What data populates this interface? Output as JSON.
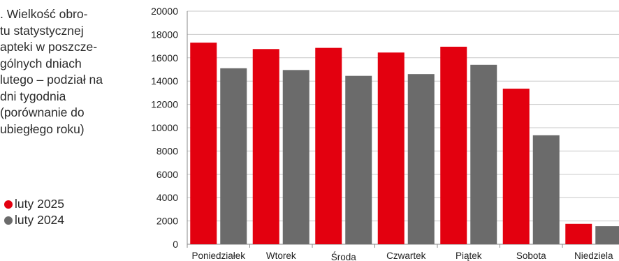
{
  "caption": {
    "lines": [
      ". Wielkość obro-",
      "tu statystycznej",
      "apteki w poszcze-",
      "gólnych dniach",
      "lutego – podział na",
      "dni tygodnia",
      "(porównanie do",
      "ubiegłego roku)"
    ]
  },
  "legend": {
    "items": [
      {
        "label": "luty 2025",
        "color": "#e3000f"
      },
      {
        "label": "luty 2024",
        "color": "#6b6b6b"
      }
    ]
  },
  "chart_data": {
    "type": "bar",
    "categories": [
      "Poniedziałek",
      "Wtorek",
      "Środa",
      "Czwartek",
      "Piątek",
      "Sobota",
      "Niedziela"
    ],
    "series": [
      {
        "name": "luty 2025",
        "color": "#e3000f",
        "values": [
          17300,
          16750,
          16850,
          16450,
          16950,
          13350,
          1750
        ]
      },
      {
        "name": "luty 2024",
        "color": "#6b6b6b",
        "values": [
          15100,
          14950,
          14450,
          14600,
          15400,
          9350,
          1550
        ]
      }
    ],
    "ylim": [
      0,
      20000
    ],
    "yticks": [
      0,
      2000,
      4000,
      6000,
      8000,
      10000,
      12000,
      14000,
      16000,
      18000,
      20000
    ],
    "grid": true,
    "legend_position": "left"
  }
}
